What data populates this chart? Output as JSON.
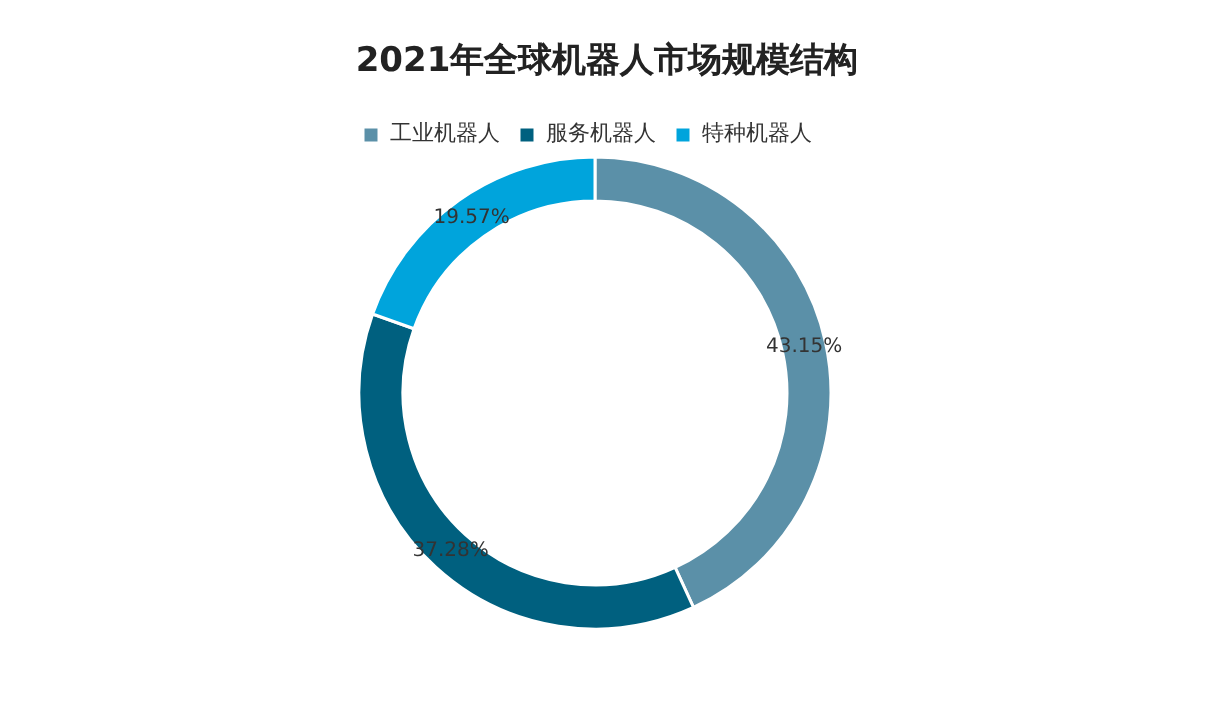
{
  "chart_data": {
    "type": "donut",
    "title": "2021年全球机器人市场规模结构",
    "categories": [
      "工业机器人",
      "服务机器人",
      "特种机器人"
    ],
    "values": [
      43.15,
      37.28,
      19.57
    ],
    "colors": [
      "#5b90a8",
      "#00607f",
      "#00a4dc"
    ],
    "value_labels": [
      "43.15%",
      "37.28%",
      "19.57%"
    ],
    "legend": "top"
  }
}
